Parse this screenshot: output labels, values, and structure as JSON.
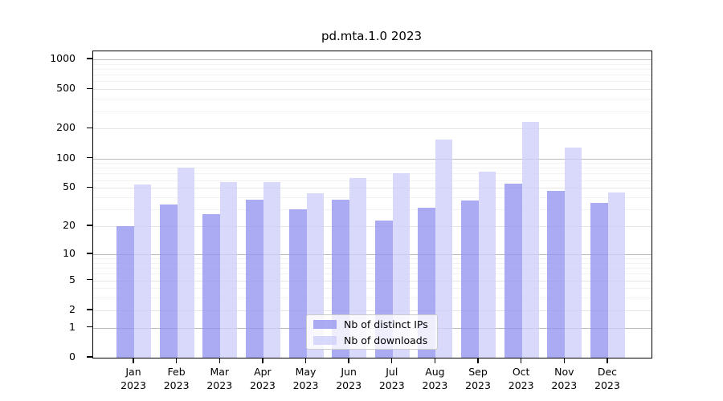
{
  "chart_data": {
    "type": "bar",
    "title": "pd.mta.1.0 2023",
    "yscale": "log1p",
    "ylim": [
      0,
      1000
    ],
    "grid": true,
    "legend_position": "lower center",
    "x_tick_second_line": "2023",
    "categories": [
      "Jan",
      "Feb",
      "Mar",
      "Apr",
      "May",
      "Jun",
      "Jul",
      "Aug",
      "Sep",
      "Oct",
      "Nov",
      "Dec"
    ],
    "y_ticks": [
      0,
      1,
      2,
      5,
      10,
      20,
      50,
      100,
      200,
      500,
      1000
    ],
    "series": [
      {
        "name": "Nb of distinct IPs",
        "color": "#9696f0",
        "values": [
          20,
          34,
          27,
          38,
          30,
          38,
          23,
          31,
          37,
          55,
          47,
          35
        ]
      },
      {
        "name": "Nb of downloads",
        "color": "#d0d0fa",
        "values": [
          54,
          80,
          57,
          57,
          44,
          63,
          70,
          155,
          74,
          235,
          128,
          45
        ]
      }
    ],
    "colors": {
      "decade_gridline": "#bbbbbb",
      "labeled_gridline": "#e5e5e5",
      "minor_gridline": "#f2f2f2",
      "axis": "#000000"
    }
  }
}
